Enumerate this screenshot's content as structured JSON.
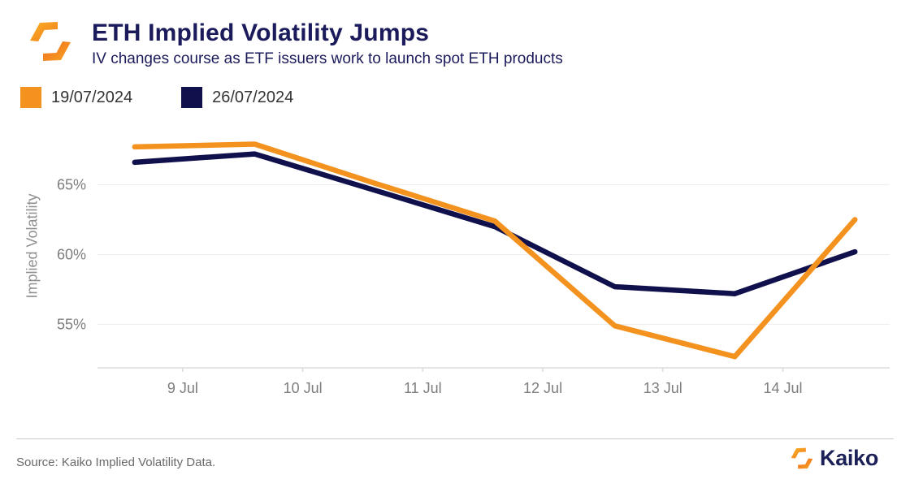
{
  "header": {
    "title": "ETH Implied Volatility Jumps",
    "subtitle": "IV changes course as ETF issuers work to launch spot ETH products"
  },
  "legend": {
    "items": [
      {
        "label": "19/07/2024",
        "color": "#F3921E"
      },
      {
        "label": "26/07/2024",
        "color": "#10104C"
      }
    ]
  },
  "chart_data": {
    "type": "line",
    "title": "ETH Implied Volatility Jumps",
    "xlabel": "",
    "ylabel": "Implied Volatility",
    "x_unit": "day of July 2024",
    "x": [
      8.6,
      9.6,
      10.6,
      11.6,
      12.6,
      13.6,
      14.6
    ],
    "series": [
      {
        "name": "19/07/2024",
        "color": "#F3921E",
        "values": [
          67.7,
          67.9,
          65.1,
          62.4,
          54.9,
          52.7,
          62.5
        ]
      },
      {
        "name": "26/07/2024",
        "color": "#10104C",
        "values": [
          66.6,
          67.2,
          64.6,
          62.0,
          57.7,
          57.2,
          60.2
        ]
      }
    ],
    "x_ticks": [
      {
        "value": 9,
        "label": "9 Jul"
      },
      {
        "value": 10,
        "label": "10 Jul"
      },
      {
        "value": 11,
        "label": "11 Jul"
      },
      {
        "value": 12,
        "label": "12 Jul"
      },
      {
        "value": 13,
        "label": "13 Jul"
      },
      {
        "value": 14,
        "label": "14 Jul"
      }
    ],
    "y_ticks": [
      {
        "value": 55,
        "label": "55%"
      },
      {
        "value": 60,
        "label": "60%"
      },
      {
        "value": 65,
        "label": "65%"
      }
    ],
    "xlim": [
      8.29,
      14.89
    ],
    "ylim": [
      51.9,
      68.8
    ],
    "grid": "horizontal",
    "legend_position": "top-left"
  },
  "footer": {
    "source": "Source: Kaiko Implied Volatility Data.",
    "brand": "Kaiko"
  },
  "colors": {
    "title_navy": "#1B1B5C",
    "line_orange": "#F3921E",
    "line_navy": "#10104C",
    "axis_text": "#7D7D7D",
    "grid_line": "#EDEDED",
    "axis_line": "#DBDBDB"
  }
}
